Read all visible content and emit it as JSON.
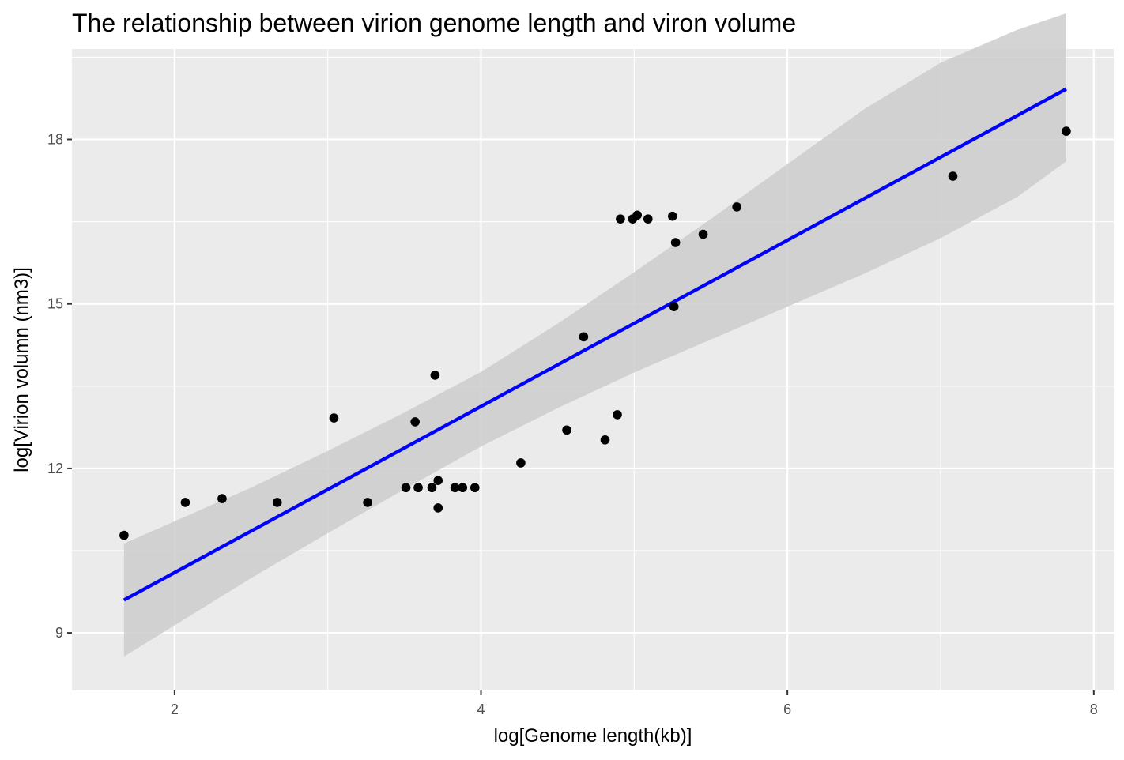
{
  "chart_data": {
    "type": "scatter",
    "title": "The relationship between virion genome length and viron volume",
    "xlabel": "log[Genome length(kb)]",
    "ylabel": "log[Virion volumn (nm3)]",
    "xlim": [
      1.33,
      8.13
    ],
    "ylim": [
      7.95,
      19.65
    ],
    "x_ticks": [
      2,
      4,
      6,
      8
    ],
    "y_ticks": [
      9,
      12,
      15,
      18
    ],
    "x_tick_labels": [
      "2",
      "4",
      "6",
      "8"
    ],
    "y_tick_labels": [
      "9",
      "12",
      "15",
      "18"
    ],
    "grid": true,
    "legend": "none",
    "points": [
      {
        "x": 1.67,
        "y": 10.78
      },
      {
        "x": 2.07,
        "y": 11.38
      },
      {
        "x": 2.31,
        "y": 11.45
      },
      {
        "x": 2.67,
        "y": 11.38
      },
      {
        "x": 3.04,
        "y": 12.92
      },
      {
        "x": 3.26,
        "y": 11.38
      },
      {
        "x": 3.51,
        "y": 11.65
      },
      {
        "x": 3.59,
        "y": 11.65
      },
      {
        "x": 3.57,
        "y": 12.85
      },
      {
        "x": 3.68,
        "y": 11.65
      },
      {
        "x": 3.7,
        "y": 13.7
      },
      {
        "x": 3.72,
        "y": 11.78
      },
      {
        "x": 3.72,
        "y": 11.28
      },
      {
        "x": 3.83,
        "y": 11.65
      },
      {
        "x": 3.88,
        "y": 11.65
      },
      {
        "x": 3.96,
        "y": 11.65
      },
      {
        "x": 4.26,
        "y": 12.1
      },
      {
        "x": 4.56,
        "y": 12.7
      },
      {
        "x": 4.67,
        "y": 14.4
      },
      {
        "x": 4.81,
        "y": 12.52
      },
      {
        "x": 4.89,
        "y": 12.98
      },
      {
        "x": 4.91,
        "y": 16.55
      },
      {
        "x": 4.99,
        "y": 16.55
      },
      {
        "x": 5.02,
        "y": 16.62
      },
      {
        "x": 5.09,
        "y": 16.55
      },
      {
        "x": 5.25,
        "y": 16.6
      },
      {
        "x": 5.27,
        "y": 16.12
      },
      {
        "x": 5.26,
        "y": 14.95
      },
      {
        "x": 5.45,
        "y": 16.27
      },
      {
        "x": 5.67,
        "y": 16.77
      },
      {
        "x": 7.08,
        "y": 17.33
      },
      {
        "x": 7.82,
        "y": 18.15
      }
    ],
    "fit": {
      "x": [
        1.67,
        7.82
      ],
      "y": [
        9.6,
        18.92
      ]
    },
    "confidence_band": {
      "x": [
        1.67,
        2.5,
        3.0,
        3.5,
        4.0,
        4.5,
        5.0,
        5.5,
        6.0,
        6.5,
        7.0,
        7.5,
        7.82
      ],
      "lower": [
        8.57,
        10.0,
        10.82,
        11.62,
        12.4,
        13.1,
        13.75,
        14.35,
        14.95,
        15.55,
        16.2,
        16.95,
        17.6
      ],
      "upper": [
        10.63,
        11.65,
        12.32,
        13.02,
        13.76,
        14.64,
        15.58,
        16.55,
        17.55,
        18.55,
        19.4,
        20.0,
        20.3
      ]
    },
    "colors": {
      "panel": "#ebebeb",
      "grid": "#ffffff",
      "points": "#000000",
      "fit_line": "#0000ff",
      "band": "#cccccc"
    }
  }
}
